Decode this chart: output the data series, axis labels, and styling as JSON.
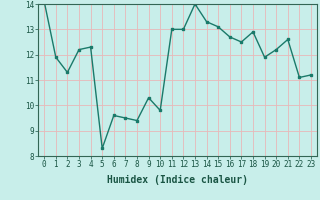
{
  "x": [
    0,
    1,
    2,
    3,
    4,
    5,
    6,
    7,
    8,
    9,
    10,
    11,
    12,
    13,
    14,
    15,
    16,
    17,
    18,
    19,
    20,
    21,
    22,
    23
  ],
  "y": [
    14.1,
    11.9,
    11.3,
    12.2,
    12.3,
    8.3,
    9.6,
    9.5,
    9.4,
    10.3,
    9.8,
    13.0,
    13.0,
    14.0,
    13.3,
    13.1,
    12.7,
    12.5,
    12.9,
    11.9,
    12.2,
    12.6,
    11.1,
    11.2
  ],
  "line_color": "#1a7a6a",
  "bg_color": "#c8eeea",
  "grid_color": "#e8b8b8",
  "xlabel": "Humidex (Indice chaleur)",
  "ylim": [
    8,
    14
  ],
  "xlim": [
    -0.5,
    23.5
  ],
  "yticks": [
    8,
    9,
    10,
    11,
    12,
    13,
    14
  ],
  "xticks": [
    0,
    1,
    2,
    3,
    4,
    5,
    6,
    7,
    8,
    9,
    10,
    11,
    12,
    13,
    14,
    15,
    16,
    17,
    18,
    19,
    20,
    21,
    22,
    23
  ],
  "marker": "s",
  "marker_size": 1.8,
  "line_width": 1.0,
  "tick_fontsize": 5.5,
  "xlabel_fontsize": 7,
  "spine_color": "#336655"
}
